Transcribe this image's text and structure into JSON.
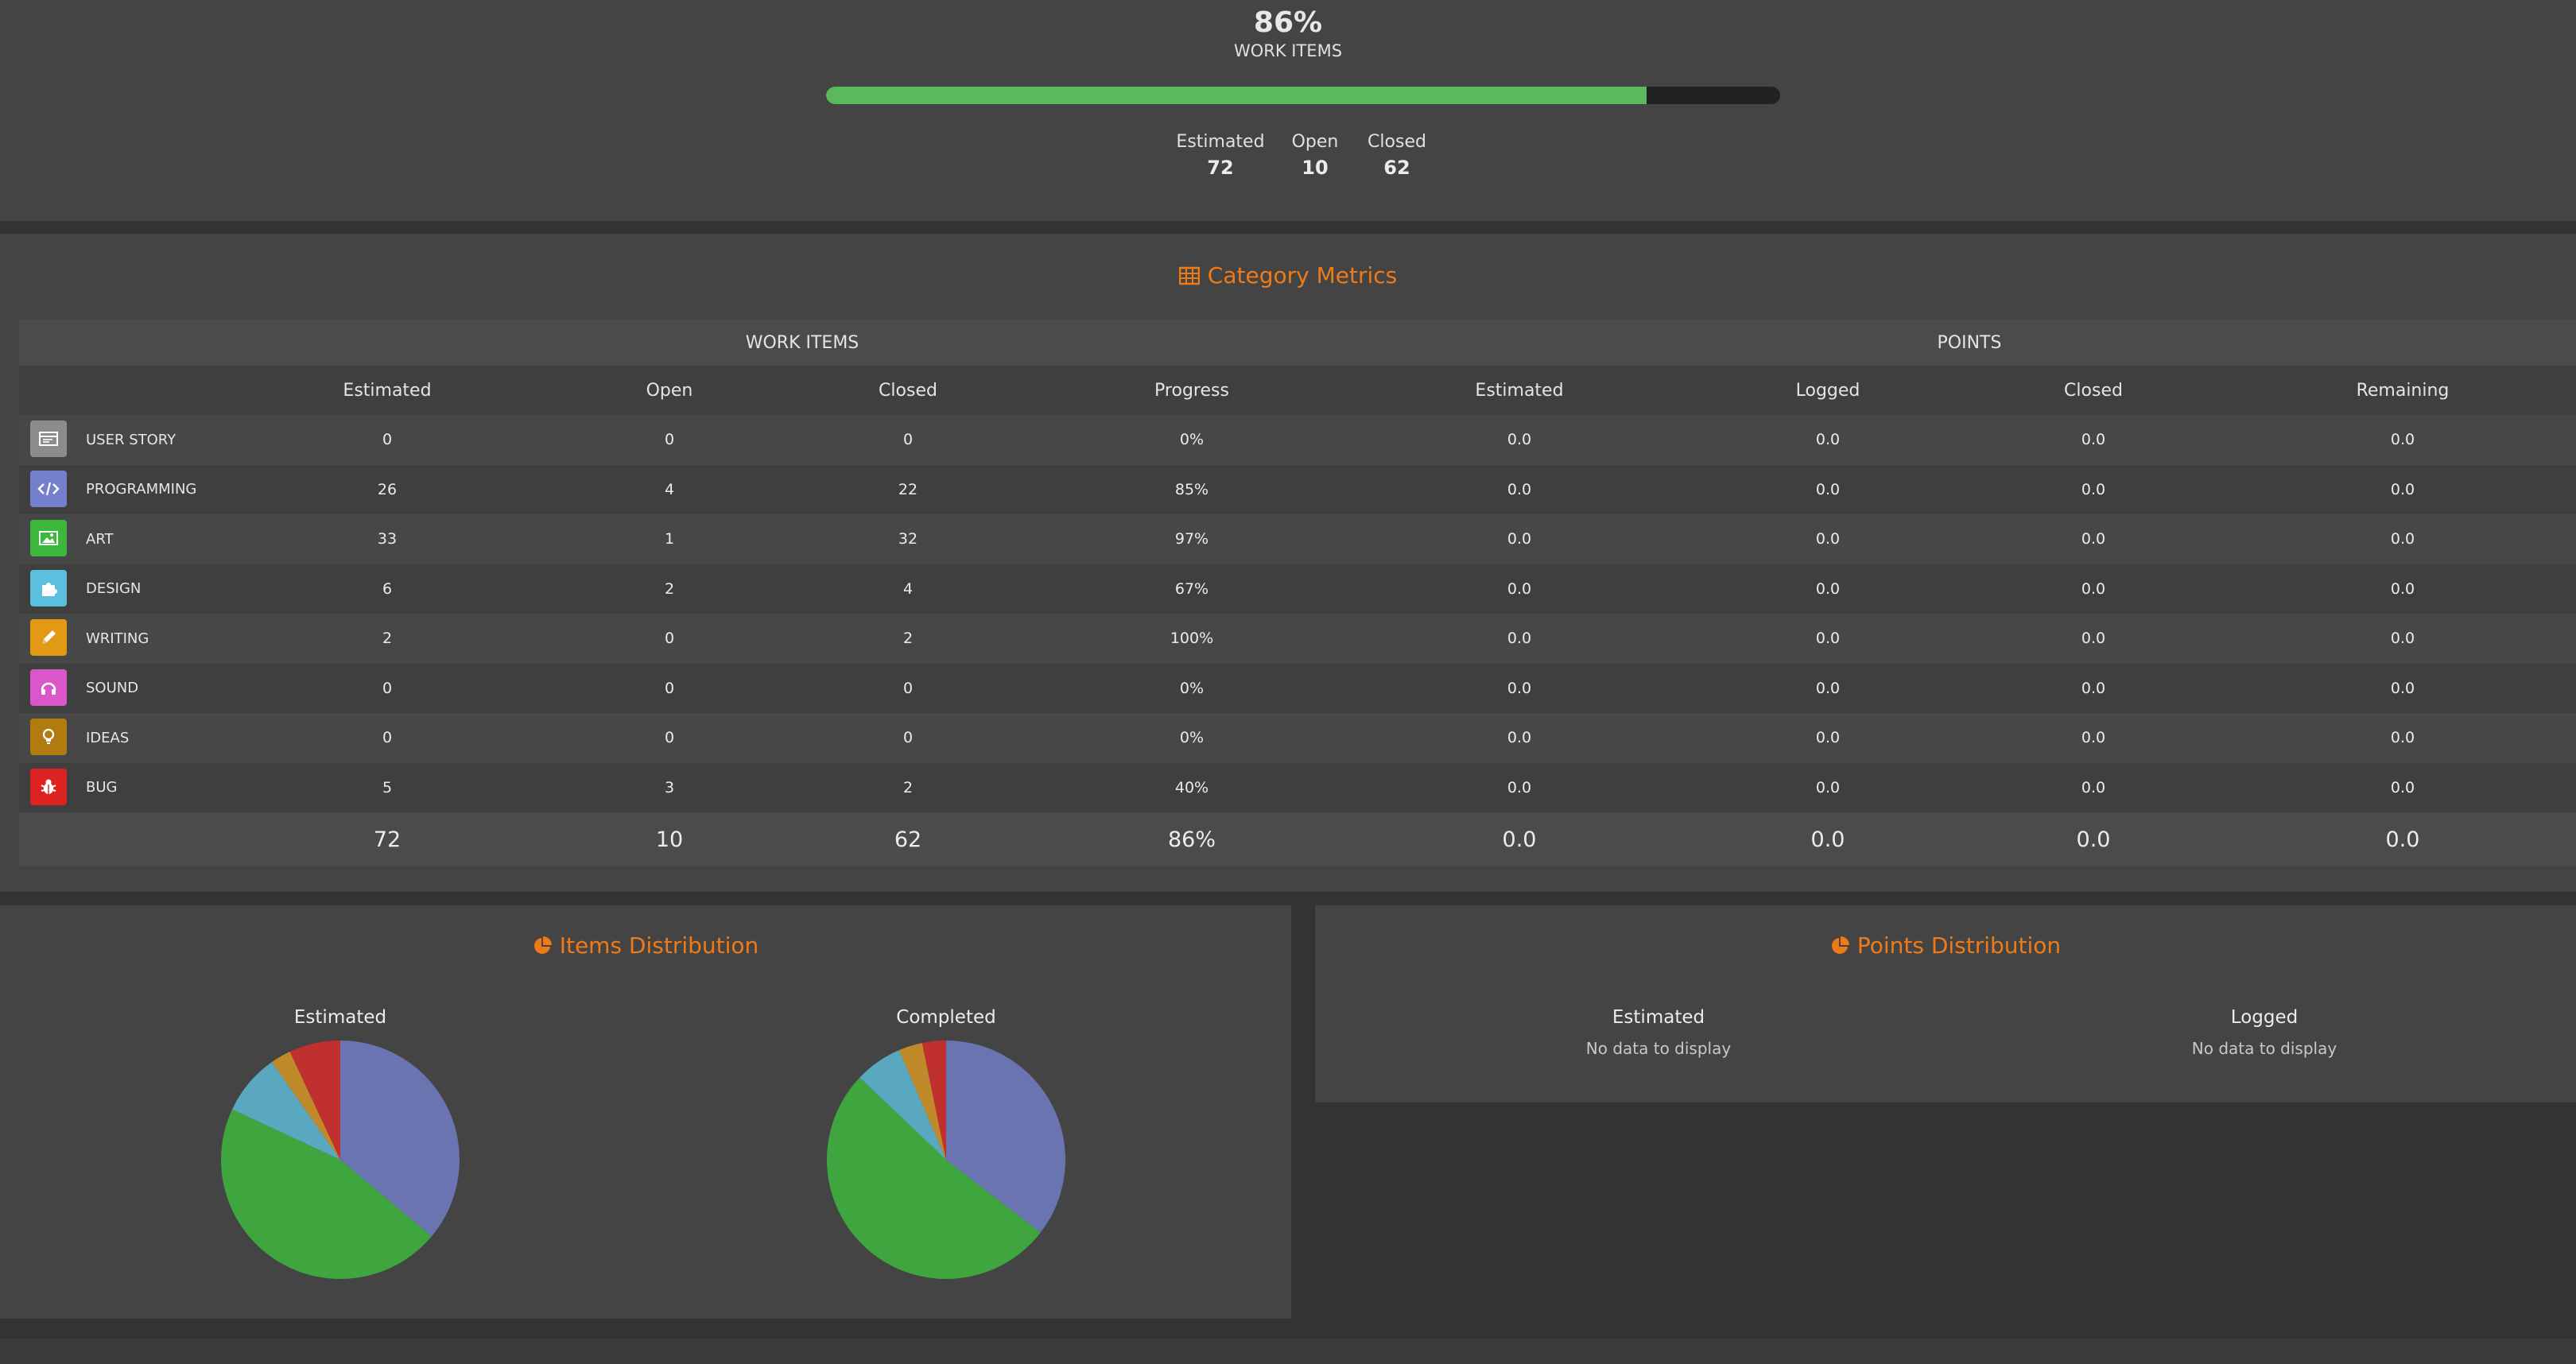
{
  "summary": {
    "percent": "86%",
    "label": "WORK ITEMS",
    "progress": 0.86,
    "stats": [
      {
        "label": "Estimated",
        "value": "72"
      },
      {
        "label": "Open",
        "value": "10"
      },
      {
        "label": "Closed",
        "value": "62"
      }
    ]
  },
  "category_metrics": {
    "title": "Category Metrics",
    "group_work_items": "WORK ITEMS",
    "group_points": "POINTS",
    "columns": [
      "Estimated",
      "Open",
      "Closed",
      "Progress",
      "Estimated",
      "Logged",
      "Closed",
      "Remaining"
    ],
    "rows": [
      {
        "name": "USER STORY",
        "icon": "card-icon",
        "color": "#8c8c8c",
        "cells": [
          "0",
          "0",
          "0",
          "0%",
          "0.0",
          "0.0",
          "0.0",
          "0.0"
        ]
      },
      {
        "name": "PROGRAMMING",
        "icon": "code-icon",
        "color": "#7480cc",
        "cells": [
          "26",
          "4",
          "22",
          "85%",
          "0.0",
          "0.0",
          "0.0",
          "0.0"
        ]
      },
      {
        "name": "ART",
        "icon": "image-icon",
        "color": "#3cb83c",
        "cells": [
          "33",
          "1",
          "32",
          "97%",
          "0.0",
          "0.0",
          "0.0",
          "0.0"
        ]
      },
      {
        "name": "DESIGN",
        "icon": "puzzle-icon",
        "color": "#5bc0de",
        "cells": [
          "6",
          "2",
          "4",
          "67%",
          "0.0",
          "0.0",
          "0.0",
          "0.0"
        ]
      },
      {
        "name": "WRITING",
        "icon": "pencil-icon",
        "color": "#e29a16",
        "cells": [
          "2",
          "0",
          "2",
          "100%",
          "0.0",
          "0.0",
          "0.0",
          "0.0"
        ]
      },
      {
        "name": "SOUND",
        "icon": "headphones-icon",
        "color": "#d957c9",
        "cells": [
          "0",
          "0",
          "0",
          "0%",
          "0.0",
          "0.0",
          "0.0",
          "0.0"
        ]
      },
      {
        "name": "IDEAS",
        "icon": "lightbulb-icon",
        "color": "#b07c10",
        "cells": [
          "0",
          "0",
          "0",
          "0%",
          "0.0",
          "0.0",
          "0.0",
          "0.0"
        ]
      },
      {
        "name": "BUG",
        "icon": "bug-icon",
        "color": "#dd2222",
        "cells": [
          "5",
          "3",
          "2",
          "40%",
          "0.0",
          "0.0",
          "0.0",
          "0.0"
        ]
      }
    ],
    "totals": [
      "72",
      "10",
      "62",
      "86%",
      "0.0",
      "0.0",
      "0.0",
      "0.0"
    ]
  },
  "items_distribution": {
    "title": "Items Distribution",
    "estimated_label": "Estimated",
    "completed_label": "Completed"
  },
  "points_distribution": {
    "title": "Points Distribution",
    "estimated_label": "Estimated",
    "logged_label": "Logged",
    "no_data": "No data to display"
  },
  "chart_data": [
    {
      "type": "pie",
      "title": "Estimated",
      "categories": [
        "PROGRAMMING",
        "ART",
        "DESIGN",
        "WRITING",
        "BUG"
      ],
      "values": [
        26,
        33,
        6,
        2,
        5
      ],
      "colors": [
        "#6a74b0",
        "#3fa63f",
        "#5aa8c0",
        "#c08a2a",
        "#c0302e"
      ]
    },
    {
      "type": "pie",
      "title": "Completed",
      "categories": [
        "PROGRAMMING",
        "ART",
        "DESIGN",
        "WRITING",
        "BUG"
      ],
      "values": [
        22,
        32,
        4,
        2,
        2
      ],
      "colors": [
        "#6a74b0",
        "#3fa63f",
        "#5aa8c0",
        "#c08a2a",
        "#c0302e"
      ]
    }
  ]
}
